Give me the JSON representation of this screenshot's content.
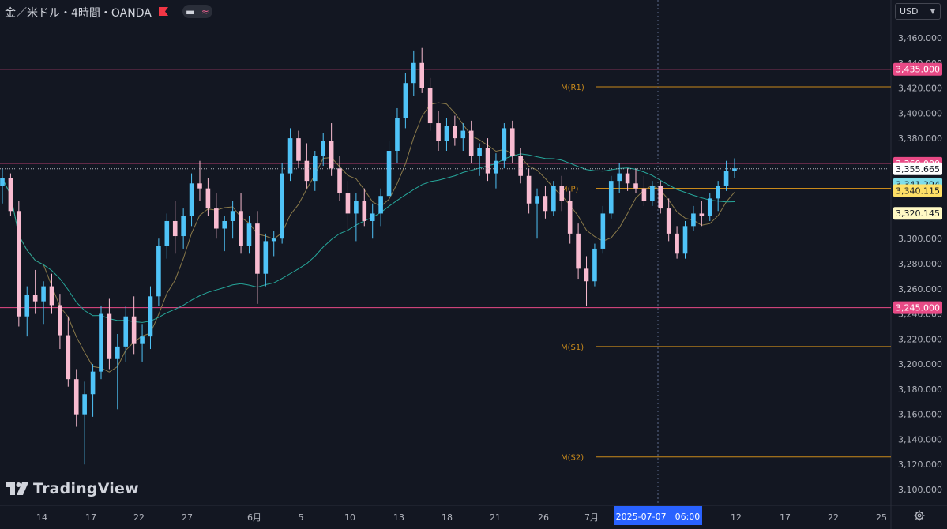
{
  "header": {
    "symbol_title": "金／米ドル・4時間・OANDA",
    "currency": "USD"
  },
  "logo": {
    "text": "TradingView"
  },
  "colors": {
    "background": "#131722",
    "candle_up": "#26a69a",
    "candle_up_body": "#4fc3f7",
    "candle_down": "#f8bbd0",
    "level_line": "#e84a86",
    "pivot_line": "#c98a1b",
    "ma_fast": "#8a7a4a",
    "ma_slow": "#26a69a"
  },
  "chart_data": {
    "type": "candlestick",
    "y_axis": {
      "min": 3090,
      "max": 3480,
      "ticks": [
        "3,100.000",
        "3,120.000",
        "3,140.000",
        "3,160.000",
        "3,180.000",
        "3,200.000",
        "3,220.000",
        "3,240.000",
        "3,260.000",
        "3,280.000",
        "3,300.000",
        "3,320.000",
        "3,340.000",
        "3,360.000",
        "3,380.000",
        "3,400.000",
        "3,420.000",
        "3,440.000",
        "3,460.000"
      ],
      "tick_values": [
        3100,
        3120,
        3140,
        3160,
        3180,
        3200,
        3220,
        3240,
        3260,
        3280,
        3300,
        3320,
        3340,
        3360,
        3380,
        3400,
        3420,
        3440,
        3460
      ]
    },
    "x_axis": {
      "labels": [
        "14",
        "17",
        "22",
        "27",
        "6月",
        "5",
        "10",
        "13",
        "18",
        "21",
        "26",
        "7月",
        "12",
        "17",
        "22",
        "25"
      ],
      "crosshair_label": "2025-07-07　06:00"
    },
    "horizontal_levels": [
      {
        "value": 3435.0,
        "label": "3,435.000"
      },
      {
        "value": 3360.0,
        "label": "3,360.000"
      },
      {
        "value": 3245.0,
        "label": "3,245.000"
      }
    ],
    "pivot_levels": [
      {
        "name": "M(R1)",
        "value": 3421
      },
      {
        "name": "M(P)",
        "value": 3340.115
      },
      {
        "name": "M(S1)",
        "value": 3214
      },
      {
        "name": "M(S2)",
        "value": 3126
      }
    ],
    "price_badges": [
      {
        "value": 3355.665,
        "label": "3,355.665",
        "kind": "last"
      },
      {
        "value": 3341.294,
        "label": "3,341.294",
        "kind": "ma_slow"
      },
      {
        "value": 3340.115,
        "label": "3,340.115",
        "kind": "pivot"
      },
      {
        "value": 3320.145,
        "label": "3,320.145",
        "kind": "ma_fast"
      }
    ],
    "last_price": 3355.665,
    "candles": [
      [
        3342,
        3356,
        3328,
        3348
      ],
      [
        3348,
        3352,
        3318,
        3322
      ],
      [
        3322,
        3330,
        3230,
        3238
      ],
      [
        3238,
        3262,
        3222,
        3255
      ],
      [
        3255,
        3275,
        3240,
        3250
      ],
      [
        3250,
        3266,
        3232,
        3262
      ],
      [
        3262,
        3272,
        3240,
        3247
      ],
      [
        3247,
        3256,
        3212,
        3223
      ],
      [
        3223,
        3238,
        3182,
        3188
      ],
      [
        3188,
        3196,
        3150,
        3160
      ],
      [
        3160,
        3186,
        3120,
        3176
      ],
      [
        3176,
        3200,
        3158,
        3194
      ],
      [
        3194,
        3246,
        3188,
        3240
      ],
      [
        3240,
        3252,
        3196,
        3204
      ],
      [
        3204,
        3224,
        3164,
        3214
      ],
      [
        3214,
        3246,
        3202,
        3238
      ],
      [
        3238,
        3254,
        3208,
        3216
      ],
      [
        3216,
        3232,
        3202,
        3222
      ],
      [
        3222,
        3262,
        3212,
        3254
      ],
      [
        3254,
        3300,
        3246,
        3294
      ],
      [
        3294,
        3320,
        3284,
        3314
      ],
      [
        3314,
        3330,
        3288,
        3302
      ],
      [
        3302,
        3324,
        3292,
        3318
      ],
      [
        3318,
        3352,
        3310,
        3344
      ],
      [
        3344,
        3362,
        3330,
        3340
      ],
      [
        3340,
        3348,
        3318,
        3324
      ],
      [
        3324,
        3336,
        3300,
        3308
      ],
      [
        3308,
        3318,
        3290,
        3314
      ],
      [
        3314,
        3330,
        3300,
        3322
      ],
      [
        3322,
        3336,
        3288,
        3294
      ],
      [
        3294,
        3318,
        3288,
        3312
      ],
      [
        3312,
        3322,
        3248,
        3272
      ],
      [
        3272,
        3304,
        3262,
        3298
      ],
      [
        3298,
        3306,
        3286,
        3300
      ],
      [
        3300,
        3360,
        3296,
        3352
      ],
      [
        3352,
        3388,
        3346,
        3380
      ],
      [
        3380,
        3386,
        3356,
        3362
      ],
      [
        3362,
        3376,
        3340,
        3346
      ],
      [
        3346,
        3370,
        3338,
        3366
      ],
      [
        3366,
        3384,
        3358,
        3378
      ],
      [
        3378,
        3392,
        3350,
        3356
      ],
      [
        3356,
        3366,
        3330,
        3336
      ],
      [
        3336,
        3346,
        3306,
        3320
      ],
      [
        3320,
        3336,
        3298,
        3330
      ],
      [
        3330,
        3340,
        3310,
        3314
      ],
      [
        3314,
        3328,
        3300,
        3320
      ],
      [
        3320,
        3340,
        3310,
        3334
      ],
      [
        3334,
        3378,
        3330,
        3370
      ],
      [
        3370,
        3404,
        3360,
        3396
      ],
      [
        3396,
        3432,
        3388,
        3424
      ],
      [
        3424,
        3450,
        3414,
        3440
      ],
      [
        3440,
        3452,
        3416,
        3420
      ],
      [
        3420,
        3428,
        3386,
        3392
      ],
      [
        3392,
        3402,
        3370,
        3378
      ],
      [
        3378,
        3396,
        3370,
        3390
      ],
      [
        3390,
        3398,
        3374,
        3380
      ],
      [
        3380,
        3392,
        3370,
        3386
      ],
      [
        3386,
        3394,
        3360,
        3366
      ],
      [
        3366,
        3376,
        3350,
        3372
      ],
      [
        3372,
        3380,
        3346,
        3352
      ],
      [
        3352,
        3368,
        3340,
        3362
      ],
      [
        3362,
        3392,
        3356,
        3388
      ],
      [
        3388,
        3394,
        3360,
        3366
      ],
      [
        3366,
        3372,
        3344,
        3350
      ],
      [
        3350,
        3356,
        3320,
        3328
      ],
      [
        3328,
        3340,
        3300,
        3334
      ],
      [
        3334,
        3342,
        3316,
        3322
      ],
      [
        3322,
        3346,
        3318,
        3342
      ],
      [
        3342,
        3350,
        3322,
        3330
      ],
      [
        3330,
        3338,
        3296,
        3304
      ],
      [
        3304,
        3312,
        3268,
        3276
      ],
      [
        3276,
        3286,
        3246,
        3266
      ],
      [
        3266,
        3296,
        3262,
        3292
      ],
      [
        3292,
        3326,
        3288,
        3320
      ],
      [
        3320,
        3350,
        3316,
        3346
      ],
      [
        3346,
        3360,
        3336,
        3352
      ],
      [
        3352,
        3356,
        3338,
        3344
      ],
      [
        3344,
        3356,
        3336,
        3340
      ],
      [
        3340,
        3350,
        3326,
        3330
      ],
      [
        3330,
        3346,
        3326,
        3342
      ],
      [
        3342,
        3346,
        3320,
        3324
      ],
      [
        3324,
        3332,
        3298,
        3304
      ],
      [
        3304,
        3310,
        3284,
        3288
      ],
      [
        3288,
        3314,
        3284,
        3310
      ],
      [
        3310,
        3326,
        3306,
        3320
      ],
      [
        3320,
        3330,
        3310,
        3318
      ],
      [
        3318,
        3336,
        3314,
        3332
      ],
      [
        3332,
        3346,
        3322,
        3342
      ],
      [
        3342,
        3362,
        3338,
        3354
      ],
      [
        3354,
        3364,
        3348,
        3356
      ]
    ]
  }
}
